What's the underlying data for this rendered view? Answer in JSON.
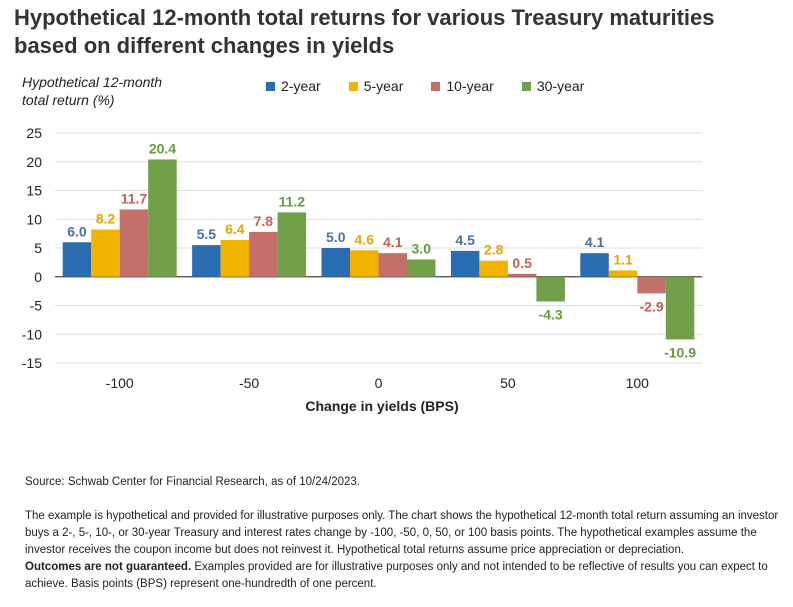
{
  "title": "Hypothetical 12-month total returns for various Treasury maturities based on different changes in yields",
  "chart_data": {
    "type": "bar",
    "categories": [
      "-100",
      "-50",
      "0",
      "50",
      "100"
    ],
    "series": [
      {
        "name": "2-year",
        "color": "#2a6db0",
        "values": [
          6.0,
          5.5,
          5.0,
          4.5,
          4.1
        ]
      },
      {
        "name": "5-year",
        "color": "#f0b400",
        "values": [
          8.2,
          6.4,
          4.6,
          2.8,
          1.1
        ]
      },
      {
        "name": "10-year",
        "color": "#c4706a",
        "values": [
          11.7,
          7.8,
          4.1,
          0.5,
          -2.9
        ]
      },
      {
        "name": "30-year",
        "color": "#72a04a",
        "values": [
          20.4,
          11.2,
          3.0,
          -4.3,
          -10.9
        ]
      }
    ],
    "label_colors": [
      "#4a6fa5",
      "#e0a800",
      "#c0625c",
      "#6a9a3e"
    ],
    "data_labels": [
      [
        "6.0",
        "5.5",
        "5.0",
        "4.5",
        "4.1"
      ],
      [
        "8.2",
        "6.4",
        "4.6",
        "2.8",
        "1.1"
      ],
      [
        "11.7",
        "7.8",
        "4.1",
        "0.5",
        "-2.9"
      ],
      [
        "20.4",
        "11.2",
        "3.0",
        "-4.3",
        "-10.9"
      ]
    ],
    "ylabel_line1": "Hypothetical 12-month",
    "ylabel_line2": "total return (%)",
    "xlabel": "Change in yields (BPS)",
    "ylim": [
      -15,
      25
    ],
    "yticks": [
      "25",
      "20",
      "15",
      "10",
      "5",
      "0",
      "-5",
      "-10",
      "-15"
    ],
    "grid": true,
    "legend_position": "top"
  },
  "source": "Source: Schwab Center for Financial Research, as of 10/24/2023.",
  "note_part1": "The example is hypothetical and provided for illustrative purposes only. The chart shows the hypothetical 12-month total return assuming an investor buys a 2-, 5-, 10-, or 30-year Treasury and interest rates change by -100, -50, 0, 50, or 100 basis points. The hypothetical examples assume the investor receives the coupon income but does not reinvest it. Hypothetical total returns assume price appreciation or depreciation.",
  "note_bold": "Outcomes are not guaranteed.",
  "note_part2": " Examples provided are for illustrative purposes only and not intended to be reflective of results you can expect to achieve. Basis points (BPS) represent one-hundredth of one percent."
}
